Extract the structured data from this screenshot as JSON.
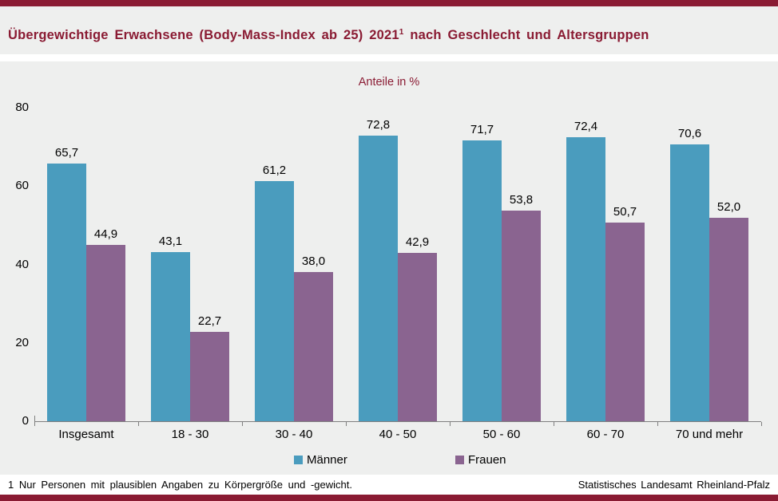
{
  "header": {
    "title_text": "Übergewichtige Erwachsene (Body-Mass-Index ab 25) 2021",
    "title_sup": "1",
    "title_tail": " nach Geschlecht und Altersgruppen"
  },
  "chart_data": {
    "type": "bar",
    "title": "Übergewichtige Erwachsene (Body-Mass-Index ab 25) 2021 nach Geschlecht und Altersgruppen",
    "subtitle": "Anteile in %",
    "categories": [
      "Insgesamt",
      "18 - 30",
      "30 - 40",
      "40 - 50",
      "50 - 60",
      "60 - 70",
      "70 und mehr"
    ],
    "series": [
      {
        "name": "Männer",
        "color": "#4a9cbe",
        "values": [
          65.7,
          43.1,
          61.2,
          72.8,
          71.7,
          72.4,
          70.6
        ],
        "labels": [
          "65,7",
          "43,1",
          "61,2",
          "72,8",
          "71,7",
          "72,4",
          "70,6"
        ]
      },
      {
        "name": "Frauen",
        "color": "#8a6490",
        "values": [
          44.9,
          22.7,
          38.0,
          42.9,
          53.8,
          50.7,
          52.0
        ],
        "labels": [
          "44,9",
          "22,7",
          "38,0",
          "42,9",
          "53,8",
          "50,7",
          "52,0"
        ]
      }
    ],
    "ylim": [
      0,
      80
    ],
    "yticks": [
      0,
      20,
      40,
      60,
      80
    ],
    "ytick_labels": [
      "0",
      "20",
      "40",
      "60",
      "80"
    ],
    "grid": false,
    "legend_position": "bottom"
  },
  "footer": {
    "footnote": "1 Nur Personen mit plausiblen Angaben zu Körpergröße und -gewicht.",
    "source": "Statistisches Landesamt Rheinland-Pfalz"
  },
  "colors": {
    "accent": "#8a1b33",
    "title_text": "#8a1b33",
    "maenner": "#4a9cbe",
    "frauen": "#8a6490",
    "chart_bg": "#eeefee",
    "axis": "#7f7f7f"
  }
}
